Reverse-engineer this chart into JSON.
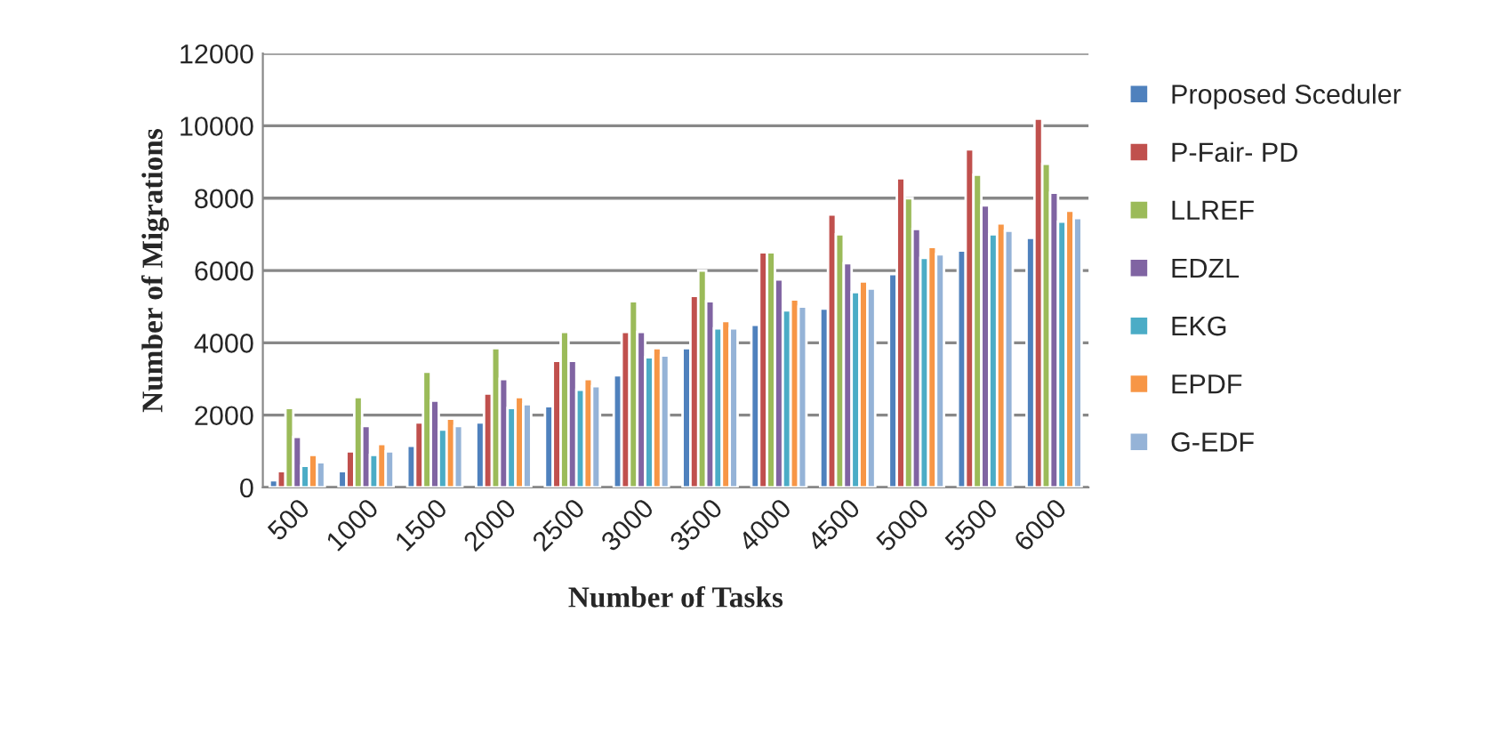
{
  "chart_data": {
    "type": "bar",
    "xlabel": "Number of Tasks",
    "ylabel": "Number of Migrations",
    "categories": [
      "500",
      "1000",
      "1500",
      "2000",
      "2500",
      "3000",
      "3500",
      "4000",
      "4500",
      "5000",
      "5500",
      "6000"
    ],
    "series": [
      {
        "name": "Proposed Sceduler",
        "color": "#4f81bd",
        "values": [
          200,
          450,
          1150,
          1800,
          2250,
          3100,
          3850,
          4500,
          4950,
          5900,
          6550,
          6900
        ]
      },
      {
        "name": "P-Fair- PD",
        "color": "#c0504d",
        "values": [
          450,
          1000,
          1800,
          2600,
          3500,
          4300,
          5300,
          6500,
          7550,
          8550,
          9350,
          10200
        ]
      },
      {
        "name": "LLREF",
        "color": "#9bbb59",
        "values": [
          2200,
          2500,
          3200,
          3850,
          4300,
          5150,
          6000,
          6500,
          7000,
          8000,
          8650,
          8950
        ]
      },
      {
        "name": "EDZL",
        "color": "#8064a2",
        "values": [
          1400,
          1700,
          2400,
          3000,
          3500,
          4300,
          5150,
          5750,
          6200,
          7150,
          7800,
          8150
        ]
      },
      {
        "name": "EKG",
        "color": "#4bacc6",
        "values": [
          600,
          900,
          1600,
          2200,
          2700,
          3600,
          4400,
          4900,
          5400,
          6350,
          7000,
          7350
        ]
      },
      {
        "name": "EPDF",
        "color": "#f79646",
        "values": [
          900,
          1200,
          1900,
          2500,
          3000,
          3850,
          4600,
          5200,
          5700,
          6650,
          7300,
          7650
        ]
      },
      {
        "name": "G-EDF",
        "color": "#95b3d7",
        "values": [
          700,
          1000,
          1700,
          2300,
          2800,
          3650,
          4400,
          5000,
          5500,
          6450,
          7100,
          7450
        ]
      }
    ],
    "ylim": [
      0,
      12000
    ],
    "yticks": [
      0,
      2000,
      4000,
      6000,
      8000,
      10000,
      12000
    ],
    "grid": "y",
    "legend": "right"
  }
}
